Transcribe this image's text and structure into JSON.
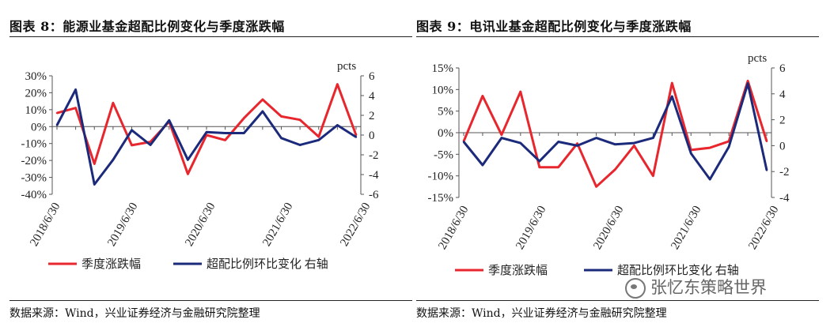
{
  "watermark": "张忆东策略世界",
  "chart_data": [
    {
      "type": "line",
      "figure_label": "图表 8",
      "title": "图表 8：能源业基金超配比例变化与季度涨跌幅",
      "source": "数据来源：Wind，兴业证券经济与金融研究院整理",
      "xlabel": "",
      "ylabel": "",
      "y2label": "pcts",
      "ylim": [
        -40,
        30
      ],
      "yticks": [
        -40,
        -30,
        -20,
        -10,
        0,
        10,
        20,
        30
      ],
      "ytick_labels": [
        "-40%",
        "-30%",
        "-20%",
        "-10%",
        "0%",
        "10%",
        "20%",
        "30%"
      ],
      "y2lim": [
        -6,
        6
      ],
      "y2ticks": [
        -6,
        -4,
        -2,
        0,
        2,
        4,
        6
      ],
      "y2tick_labels": [
        "-6",
        "-4",
        "-2",
        "0",
        "2",
        "4",
        "6"
      ],
      "x_tick_labels": [
        "2018/6/30",
        "2019/6/30",
        "2020/6/30",
        "2021/6/30",
        "2022/6/30"
      ],
      "series": [
        {
          "name": "季度涨跌幅",
          "axis": "left",
          "color": "#e8262d",
          "values": [
            8,
            11,
            -22,
            14,
            -11,
            -9,
            3,
            -28,
            -5,
            -8,
            5,
            16,
            6,
            4,
            -6,
            25,
            -5
          ]
        },
        {
          "name": "超配比例环比变化 右轴",
          "axis": "right",
          "color": "#1b2a7a",
          "values": [
            1,
            4.6,
            -5,
            -2.5,
            0.5,
            -1,
            1.5,
            -2.5,
            0.3,
            0.2,
            0.2,
            2.4,
            -0.3,
            -1,
            -0.5,
            1,
            -0.2
          ]
        }
      ],
      "legend": [
        {
          "label": "季度涨跌幅",
          "color": "#e8262d"
        },
        {
          "label": "超配比例环比变化 右轴",
          "color": "#1b2a7a"
        }
      ]
    },
    {
      "type": "line",
      "figure_label": "图表 9",
      "title": "图表 9：电讯业基金超配比例变化与季度涨跌幅",
      "source": "数据来源：Wind，兴业证券经济与金融研究院整理",
      "xlabel": "",
      "ylabel": "",
      "y2label": "pcts",
      "ylim": [
        -15,
        15
      ],
      "yticks": [
        -15,
        -10,
        -5,
        0,
        5,
        10,
        15
      ],
      "ytick_labels": [
        "-15%",
        "-10%",
        "-5%",
        "0%",
        "5%",
        "10%",
        "15%"
      ],
      "y2lim": [
        -4,
        6
      ],
      "y2ticks": [
        -4,
        -2,
        0,
        2,
        4,
        6
      ],
      "y2tick_labels": [
        "-4",
        "-2",
        "0",
        "2",
        "4",
        "6"
      ],
      "x_tick_labels": [
        "2018/6/30",
        "2019/6/30",
        "2020/6/30",
        "2021/6/30",
        "2022/6/30"
      ],
      "series": [
        {
          "name": "季度涨跌幅",
          "axis": "left",
          "color": "#e8262d",
          "values": [
            -2,
            8.5,
            -0.5,
            9.5,
            -8,
            -8,
            -2.5,
            -12.5,
            -8.5,
            -3,
            -10,
            11.5,
            -4,
            -3.5,
            -2,
            12,
            -2
          ]
        },
        {
          "name": "超配比例环比变化 右轴",
          "axis": "right",
          "color": "#1b2a7a",
          "values": [
            0.3,
            -1.5,
            0.6,
            0.2,
            -1.2,
            0.3,
            0,
            0.6,
            0.1,
            0.2,
            0.6,
            3.8,
            -0.6,
            -2.6,
            -0.1,
            4.8,
            -1.9
          ]
        }
      ],
      "legend": [
        {
          "label": "季度涨跌幅",
          "color": "#e8262d"
        },
        {
          "label": "超配比例环比变化 右轴",
          "color": "#1b2a7a"
        }
      ]
    }
  ]
}
